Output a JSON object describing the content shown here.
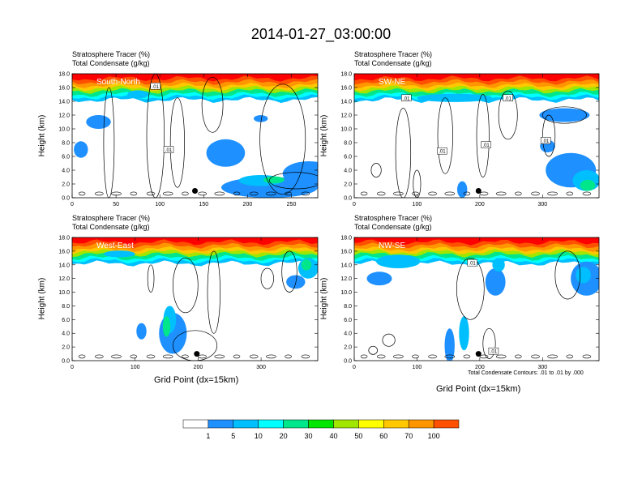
{
  "title": "2014-01-27_03:00:00",
  "colorbar": {
    "levels": [
      "1",
      "5",
      "10",
      "20",
      "30",
      "40",
      "50",
      "60",
      "70",
      "100"
    ],
    "colors": [
      "#ffffff",
      "#1e90ff",
      "#00bfff",
      "#00ffff",
      "#00e68a",
      "#00e600",
      "#a0e600",
      "#ffff00",
      "#ffc800",
      "#ff9600",
      "#ff5000",
      "#ff0000"
    ]
  },
  "contour_note": "Total Condensate Contours: .01 to .01 by .000",
  "chart_data": [
    {
      "type": "heatmap",
      "panel": "south-north",
      "section_label": "South-North",
      "title_line1": "Stratosphere Tracer   (%)",
      "title_line2": "Total Condensate   (g/kg)",
      "ylabel": "Height (km)",
      "xlabel": "",
      "xlim": [
        0,
        280
      ],
      "ylim": [
        0,
        18
      ],
      "xticks": [
        "0",
        "50",
        "100",
        "150",
        "200",
        "250"
      ],
      "yticks": [
        "0.0",
        "2.0",
        "4.0",
        "6.0",
        "8.0",
        "10.0",
        "12.0",
        "14.0",
        "16.0",
        "18.0"
      ],
      "marker_x": 140,
      "contour_labels": [
        {
          "text": ".01",
          "x": 95,
          "y": 16.2
        },
        {
          "text": ".01",
          "x": 110,
          "y": 7.0
        }
      ]
    },
    {
      "type": "heatmap",
      "panel": "sw-ne",
      "section_label": "SW-NE",
      "title_line1": "Stratosphere Tracer   (%)",
      "title_line2": "Total Condensate   (g/kg)",
      "ylabel": "Height (km)",
      "xlabel": "",
      "xlim": [
        0,
        390
      ],
      "ylim": [
        0,
        18
      ],
      "xticks": [
        "0",
        "100",
        "200",
        "300"
      ],
      "yticks": [
        "0.0",
        "2.0",
        "4.0",
        "6.0",
        "8.0",
        "10.0",
        "12.0",
        "14.0",
        "16.0",
        "18.0"
      ],
      "marker_x": 198,
      "contour_labels": [
        {
          "text": ".01",
          "x": 83,
          "y": 14.5
        },
        {
          "text": ".01",
          "x": 140,
          "y": 6.8
        },
        {
          "text": ".01",
          "x": 210,
          "y": 7.7
        },
        {
          "text": ".01",
          "x": 245,
          "y": 14.5
        },
        {
          "text": ".01",
          "x": 305,
          "y": 8.3
        }
      ]
    },
    {
      "type": "heatmap",
      "panel": "west-east",
      "section_label": "West-East",
      "title_line1": "Stratosphere Tracer   (%)",
      "title_line2": "Total Condensate   (g/kg)",
      "ylabel": "Height (km)",
      "xlabel": "Grid Point (dx=15km)",
      "xlim": [
        0,
        390
      ],
      "ylim": [
        0,
        18
      ],
      "xticks": [
        "0",
        "100",
        "200",
        "300"
      ],
      "yticks": [
        "0.0",
        "2.0",
        "4.0",
        "6.0",
        "8.0",
        "10.0",
        "12.0",
        "14.0",
        "16.0",
        "18.0"
      ],
      "marker_x": 198,
      "contour_labels": []
    },
    {
      "type": "heatmap",
      "panel": "nw-se",
      "section_label": "NW-SE",
      "title_line1": "Stratosphere Tracer   (%)",
      "title_line2": "Total Condensate   (g/kg)",
      "ylabel": "Height (km)",
      "xlabel": "Grid Point (dx=15km)",
      "xlim": [
        0,
        390
      ],
      "ylim": [
        0,
        18
      ],
      "xticks": [
        "0",
        "100",
        "200",
        "300"
      ],
      "yticks": [
        "0.0",
        "2.0",
        "4.0",
        "6.0",
        "8.0",
        "10.0",
        "12.0",
        "14.0",
        "16.0",
        "18.0"
      ],
      "marker_x": 198,
      "contour_labels": [
        {
          "text": ".01",
          "x": 188,
          "y": 14.3
        },
        {
          "text": ".01",
          "x": 222,
          "y": 1.4
        }
      ]
    }
  ]
}
